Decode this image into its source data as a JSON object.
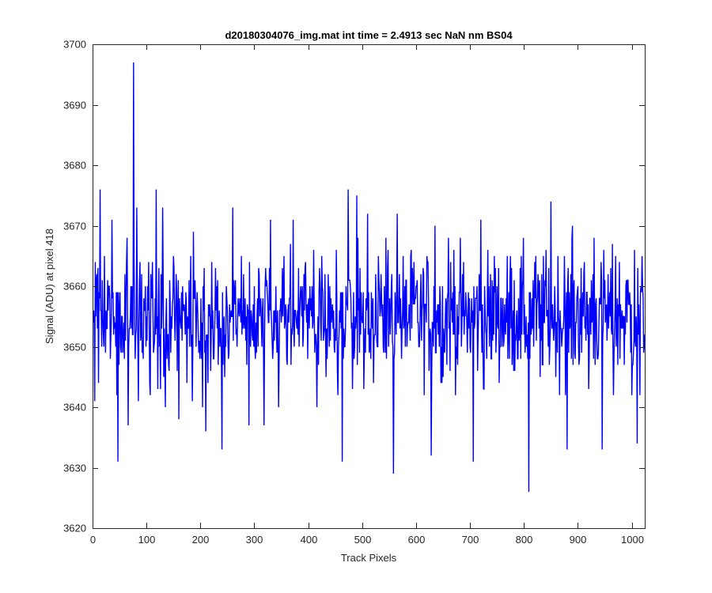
{
  "chart_data": {
    "type": "line",
    "title": "d20180304076_img.mat int time = 2.4913 sec  NaN nm BS04",
    "xlabel": "Track Pixels",
    "ylabel": "Signal (ADU) at pixel 418",
    "xlim": [
      0,
      1024
    ],
    "ylim": [
      3620,
      3700
    ],
    "xticks": [
      0,
      100,
      200,
      300,
      400,
      500,
      600,
      700,
      800,
      900,
      1000
    ],
    "yticks": [
      3620,
      3630,
      3640,
      3650,
      3660,
      3670,
      3680,
      3690,
      3700
    ],
    "grid": false,
    "series": [
      {
        "color": "#0000ff",
        "mean": 3655,
        "n_points": 1024,
        "keypoints": [
          [
            1,
            3654
          ],
          [
            4,
            3641
          ],
          [
            8,
            3662
          ],
          [
            11,
            3644
          ],
          [
            14,
            3676
          ],
          [
            17,
            3650
          ],
          [
            22,
            3665
          ],
          [
            26,
            3653
          ],
          [
            30,
            3660
          ],
          [
            33,
            3648
          ],
          [
            36,
            3671
          ],
          [
            40,
            3655
          ],
          [
            45,
            3642
          ],
          [
            47,
            3631
          ],
          [
            51,
            3659
          ],
          [
            56,
            3649
          ],
          [
            60,
            3662
          ],
          [
            64,
            3668
          ],
          [
            66,
            3637
          ],
          [
            70,
            3655
          ],
          [
            74,
            3652
          ],
          [
            76,
            3697
          ],
          [
            79,
            3648
          ],
          [
            82,
            3673
          ],
          [
            85,
            3641
          ],
          [
            88,
            3664
          ],
          [
            95,
            3658
          ],
          [
            100,
            3655
          ],
          [
            104,
            3664
          ],
          [
            110,
            3658
          ],
          [
            114,
            3650
          ],
          [
            118,
            3676
          ],
          [
            122,
            3657
          ],
          [
            126,
            3643
          ],
          [
            130,
            3673
          ],
          [
            135,
            3640
          ],
          [
            140,
            3652
          ],
          [
            150,
            3665
          ],
          [
            155,
            3662
          ],
          [
            160,
            3638
          ],
          [
            170,
            3657
          ],
          [
            175,
            3644
          ],
          [
            180,
            3650
          ],
          [
            185,
            3641
          ],
          [
            190,
            3661
          ],
          [
            200,
            3650
          ],
          [
            204,
            3640
          ],
          [
            210,
            3636
          ],
          [
            218,
            3655
          ],
          [
            225,
            3648
          ],
          [
            230,
            3660
          ],
          [
            240,
            3633
          ],
          [
            245,
            3645
          ],
          [
            255,
            3654
          ],
          [
            260,
            3673
          ],
          [
            270,
            3658
          ],
          [
            280,
            3662
          ],
          [
            290,
            3637
          ],
          [
            300,
            3660
          ],
          [
            310,
            3655
          ],
          [
            318,
            3637
          ],
          [
            322,
            3660
          ],
          [
            330,
            3671
          ],
          [
            335,
            3650
          ],
          [
            345,
            3640
          ],
          [
            350,
            3654
          ],
          [
            355,
            3665
          ],
          [
            360,
            3648
          ],
          [
            372,
            3671
          ],
          [
            380,
            3656
          ],
          [
            390,
            3650
          ],
          [
            400,
            3657
          ],
          [
            410,
            3666
          ],
          [
            416,
            3640
          ],
          [
            425,
            3665
          ],
          [
            433,
            3645
          ],
          [
            440,
            3660
          ],
          [
            450,
            3653
          ],
          [
            455,
            3642
          ],
          [
            463,
            3631
          ],
          [
            470,
            3660
          ],
          [
            474,
            3676
          ],
          [
            480,
            3653
          ],
          [
            486,
            3650
          ],
          [
            490,
            3675
          ],
          [
            495,
            3649
          ],
          [
            505,
            3653
          ],
          [
            510,
            3672
          ],
          [
            520,
            3658
          ],
          [
            530,
            3665
          ],
          [
            540,
            3649
          ],
          [
            548,
            3666
          ],
          [
            555,
            3662
          ],
          [
            558,
            3629
          ],
          [
            565,
            3672
          ],
          [
            575,
            3656
          ],
          [
            580,
            3650
          ],
          [
            590,
            3665
          ],
          [
            600,
            3660
          ],
          [
            605,
            3650
          ],
          [
            612,
            3657
          ],
          [
            620,
            3665
          ],
          [
            628,
            3632
          ],
          [
            635,
            3670
          ],
          [
            640,
            3657
          ],
          [
            650,
            3645
          ],
          [
            660,
            3668
          ],
          [
            670,
            3666
          ],
          [
            675,
            3648
          ],
          [
            680,
            3659
          ],
          [
            690,
            3656
          ],
          [
            700,
            3650
          ],
          [
            706,
            3631
          ],
          [
            710,
            3658
          ],
          [
            720,
            3671
          ],
          [
            725,
            3643
          ],
          [
            730,
            3652
          ],
          [
            740,
            3648
          ],
          [
            745,
            3665
          ],
          [
            750,
            3660
          ],
          [
            760,
            3654
          ],
          [
            770,
            3648
          ],
          [
            775,
            3665
          ],
          [
            780,
            3656
          ],
          [
            790,
            3658
          ],
          [
            800,
            3652
          ],
          [
            805,
            3650
          ],
          [
            809,
            3626
          ],
          [
            815,
            3658
          ],
          [
            820,
            3664
          ],
          [
            830,
            3645
          ],
          [
            840,
            3660
          ],
          [
            845,
            3650
          ],
          [
            850,
            3674
          ],
          [
            860,
            3654
          ],
          [
            870,
            3650
          ],
          [
            875,
            3665
          ],
          [
            880,
            3633
          ],
          [
            885,
            3653
          ],
          [
            890,
            3670
          ],
          [
            900,
            3660
          ],
          [
            906,
            3663
          ],
          [
            910,
            3655
          ],
          [
            920,
            3643
          ],
          [
            925,
            3661
          ],
          [
            930,
            3668
          ],
          [
            940,
            3658
          ],
          [
            945,
            3633
          ],
          [
            950,
            3661
          ],
          [
            960,
            3655
          ],
          [
            966,
            3642
          ],
          [
            970,
            3665
          ],
          [
            980,
            3654
          ],
          [
            990,
            3661
          ],
          [
            1000,
            3642
          ],
          [
            1005,
            3666
          ],
          [
            1010,
            3634
          ],
          [
            1015,
            3642
          ],
          [
            1020,
            3660
          ],
          [
            1024,
            3652
          ]
        ]
      }
    ]
  }
}
